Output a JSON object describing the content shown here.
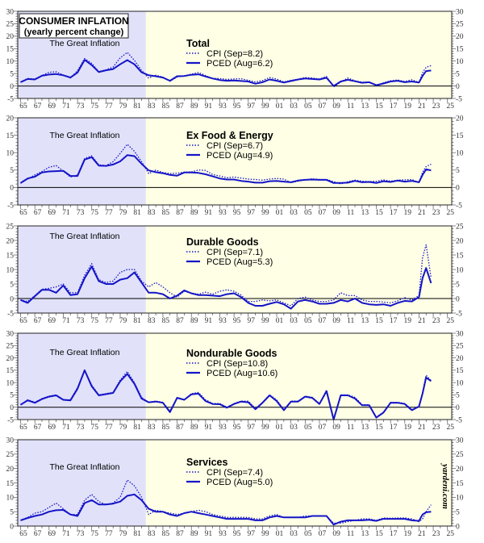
{
  "header": {
    "title": "CONSUMER INFLATION",
    "subtitle": "(yearly percent change)"
  },
  "watermark": "yardeni.com",
  "colors": {
    "line": "#1414C8",
    "great_inflation_shade": "#E1E1FA",
    "background": "#FFFFE6",
    "zero_line": "#000000"
  },
  "chart_data": {
    "type": "line",
    "shared_x_note_label": "The Great Inflation",
    "great_inflation_period": [
      1964.6,
      1982.6
    ],
    "xlim": [
      1964.6,
      2025.6
    ],
    "x_tick_labels": [
      "65",
      "67",
      "69",
      "71",
      "73",
      "75",
      "77",
      "79",
      "81",
      "83",
      "85",
      "87",
      "89",
      "91",
      "93",
      "95",
      "97",
      "99",
      "01",
      "03",
      "05",
      "07",
      "09",
      "11",
      "13",
      "15",
      "17",
      "19",
      "21",
      "23",
      "25"
    ],
    "x": [
      1965,
      1966,
      1967,
      1968,
      1969,
      1970,
      1971,
      1972,
      1973,
      1974,
      1975,
      1976,
      1977,
      1978,
      1979,
      1980,
      1981,
      1982,
      1983,
      1984,
      1985,
      1986,
      1987,
      1988,
      1989,
      1990,
      1991,
      1992,
      1993,
      1994,
      1995,
      1996,
      1997,
      1998,
      1999,
      2000,
      2001,
      2002,
      2003,
      2004,
      2005,
      2006,
      2007,
      2008,
      2009,
      2010,
      2011,
      2012,
      2013,
      2014,
      2015,
      2016,
      2017,
      2018,
      2019,
      2020,
      2021,
      2021.5,
      2022,
      2022.7
    ],
    "panels": [
      {
        "title": "Total",
        "ylim": [
          -5,
          30
        ],
        "y_ticks": [
          -5,
          0,
          5,
          10,
          15,
          20,
          25,
          30
        ],
        "grid": false,
        "series": [
          {
            "name": "CPI (Sep=8.2)",
            "style": "dotted",
            "values": [
              1.6,
              3.0,
              2.8,
              4.2,
              5.5,
              5.7,
              4.4,
              3.2,
              6.2,
              11.0,
              9.1,
              5.8,
              6.5,
              7.6,
              11.3,
              13.5,
              10.3,
              6.2,
              3.2,
              4.3,
              3.6,
              1.9,
              3.6,
              4.1,
              4.8,
              5.4,
              4.2,
              3.0,
              3.0,
              2.6,
              2.8,
              2.9,
              2.3,
              1.6,
              2.2,
              3.4,
              2.8,
              1.6,
              2.3,
              2.7,
              3.4,
              3.2,
              2.8,
              3.8,
              -0.4,
              1.6,
              3.2,
              2.1,
              1.5,
              1.6,
              0.1,
              1.3,
              2.1,
              2.4,
              1.8,
              2.5,
              1.4,
              5.3,
              7.5,
              8.2
            ]
          },
          {
            "name": "PCED (Aug=6.2)",
            "style": "solid",
            "values": [
              1.5,
              2.8,
              2.6,
              4.1,
              4.6,
              4.8,
              4.3,
              3.4,
              5.4,
              10.5,
              8.4,
              5.6,
              6.3,
              6.8,
              8.7,
              10.4,
              8.7,
              5.5,
              4.3,
              3.9,
              3.4,
              2.1,
              3.9,
              4.0,
              4.5,
              4.7,
              3.8,
              3.0,
              2.4,
              2.1,
              2.2,
              2.0,
              1.8,
              0.9,
              1.5,
              2.6,
              2.1,
              1.4,
              2.0,
              2.6,
              3.0,
              2.8,
              2.6,
              3.3,
              0.0,
              1.8,
              2.5,
              1.9,
              1.3,
              1.5,
              0.3,
              1.0,
              1.8,
              2.1,
              1.5,
              1.8,
              1.4,
              4.0,
              6.0,
              6.2
            ]
          }
        ]
      },
      {
        "title": "Ex Food & Energy",
        "ylim": [
          -5,
          20
        ],
        "y_ticks": [
          -5,
          0,
          5,
          10,
          15,
          20
        ],
        "grid": false,
        "series": [
          {
            "name": "CPI (Sep=6.7)",
            "style": "dotted",
            "values": [
              1.2,
              2.4,
              3.6,
              4.6,
              5.8,
              6.3,
              4.7,
              3.0,
              3.6,
              8.3,
              9.1,
              6.5,
              6.3,
              7.4,
              9.8,
              12.4,
              10.4,
              7.4,
              4.0,
              5.0,
              4.3,
              4.0,
              4.1,
              4.4,
              4.5,
              5.0,
              4.9,
              3.7,
              3.3,
              2.8,
              3.0,
              2.7,
              2.4,
              2.3,
              2.1,
              2.4,
              2.6,
              2.4,
              1.4,
              1.8,
              2.2,
              2.5,
              2.3,
              2.3,
              1.7,
              1.0,
              1.7,
              2.1,
              1.8,
              1.7,
              1.8,
              2.2,
              1.8,
              2.1,
              2.2,
              2.3,
              1.4,
              4.4,
              6.0,
              6.7
            ]
          },
          {
            "name": "PCED (Aug=4.9)",
            "style": "solid",
            "values": [
              1.3,
              2.6,
              3.1,
              4.3,
              4.6,
              4.7,
              4.8,
              3.3,
              3.3,
              8.0,
              8.7,
              6.3,
              6.2,
              6.6,
              7.5,
              9.3,
              9.0,
              6.8,
              4.9,
              4.4,
              4.1,
              3.6,
              3.4,
              4.3,
              4.3,
              4.2,
              3.8,
              3.2,
              2.6,
              2.3,
              2.3,
              1.9,
              1.7,
              1.4,
              1.4,
              1.8,
              1.9,
              1.7,
              1.5,
              2.0,
              2.2,
              2.3,
              2.2,
              2.2,
              1.3,
              1.3,
              1.4,
              1.9,
              1.5,
              1.6,
              1.3,
              1.8,
              1.6,
              2.0,
              1.7,
              1.9,
              1.5,
              3.6,
              5.2,
              4.9
            ]
          }
        ]
      },
      {
        "title": "Durable Goods",
        "ylim": [
          -5,
          25
        ],
        "y_ticks": [
          -5,
          0,
          5,
          10,
          15,
          20,
          25
        ],
        "grid": false,
        "series": [
          {
            "name": "CPI (Sep=7.1)",
            "style": "dotted",
            "values": [
              -0.5,
              -1.0,
              1.0,
              3.2,
              3.5,
              4.0,
              5.0,
              2.0,
              2.0,
              8.0,
              12.0,
              6.5,
              5.5,
              6.0,
              9.0,
              10.0,
              10.0,
              6.0,
              4.0,
              5.5,
              4.0,
              2.0,
              0.5,
              2.5,
              1.8,
              1.5,
              2.2,
              1.5,
              2.5,
              3.0,
              2.5,
              1.2,
              -1.0,
              -1.0,
              -0.5,
              -0.8,
              -0.5,
              -1.5,
              -2.5,
              0.0,
              0.5,
              -0.5,
              -1.0,
              -1.0,
              -0.5,
              2.0,
              1.0,
              1.0,
              -0.5,
              -1.0,
              -1.0,
              -1.2,
              -1.5,
              -0.8,
              0.3,
              -0.5,
              1.0,
              14.0,
              18.5,
              7.1
            ]
          },
          {
            "name": "PCED (Aug=5.3)",
            "style": "solid",
            "values": [
              -0.5,
              -1.5,
              0.8,
              3.0,
              3.0,
              2.0,
              4.5,
              1.2,
              1.5,
              7.0,
              11.0,
              6.0,
              5.0,
              5.0,
              6.5,
              7.0,
              9.0,
              5.5,
              2.0,
              2.0,
              1.5,
              0.0,
              1.0,
              2.8,
              1.8,
              1.2,
              1.2,
              1.0,
              0.8,
              1.5,
              1.8,
              0.5,
              -1.5,
              -2.5,
              -2.5,
              -1.8,
              -1.2,
              -2.0,
              -3.5,
              -1.0,
              -0.5,
              -1.0,
              -1.8,
              -1.8,
              -1.5,
              -0.5,
              -1.0,
              0.0,
              -1.5,
              -2.0,
              -2.2,
              -2.0,
              -2.5,
              -1.5,
              -0.8,
              -1.0,
              0.5,
              7.0,
              10.5,
              5.3
            ]
          }
        ]
      },
      {
        "title": "Nondurable Goods",
        "ylim": [
          -5,
          30
        ],
        "y_ticks": [
          -5,
          0,
          5,
          10,
          15,
          20,
          25,
          30
        ],
        "grid": false,
        "series": [
          {
            "name": "CPI (Sep=10.8)",
            "style": "dotted",
            "values": [
              1.0,
              3.0,
              2.0,
              3.5,
              4.5,
              5.0,
              3.0,
              3.0,
              8.0,
              15.0,
              9.0,
              5.0,
              5.5,
              6.0,
              11.0,
              14.5,
              10.0,
              4.0,
              2.0,
              2.5,
              2.0,
              -1.5,
              4.0,
              3.0,
              5.5,
              6.0,
              3.0,
              1.5,
              1.5,
              0.0,
              1.5,
              2.5,
              2.5,
              -0.5,
              2.0,
              5.0,
              3.0,
              -1.0,
              2.5,
              2.5,
              4.5,
              4.0,
              1.5,
              7.0,
              -4.5,
              5.0,
              5.0,
              4.0,
              1.0,
              1.0,
              -4.0,
              -2.0,
              2.0,
              2.0,
              1.5,
              -1.0,
              0.5,
              6.0,
              13.0,
              10.8
            ]
          },
          {
            "name": "PCED (Aug=10.6)",
            "style": "solid",
            "values": [
              1.0,
              2.8,
              1.8,
              3.3,
              4.3,
              4.8,
              3.0,
              2.8,
              7.5,
              15.0,
              8.5,
              4.8,
              5.3,
              5.8,
              10.5,
              13.5,
              9.5,
              3.5,
              2.0,
              2.3,
              1.8,
              -2.0,
              3.8,
              3.0,
              5.2,
              5.5,
              2.5,
              1.3,
              1.2,
              -0.2,
              1.3,
              2.3,
              2.0,
              -0.8,
              1.8,
              4.8,
              2.5,
              -1.2,
              2.3,
              2.3,
              4.3,
              3.8,
              1.3,
              6.5,
              -5.0,
              4.8,
              4.8,
              3.5,
              0.8,
              0.8,
              -4.2,
              -2.2,
              1.8,
              1.8,
              1.3,
              -1.2,
              0.3,
              5.5,
              12.0,
              10.6
            ]
          }
        ]
      },
      {
        "title": "Services",
        "ylim": [
          0,
          30
        ],
        "y_ticks": [
          0,
          5,
          10,
          15,
          20,
          25,
          30
        ],
        "grid": false,
        "series": [
          {
            "name": "CPI (Sep=7.4)",
            "style": "dotted",
            "values": [
              2.0,
              3.0,
              4.5,
              5.0,
              6.5,
              8.0,
              6.0,
              4.0,
              4.0,
              9.0,
              11.0,
              8.5,
              7.5,
              8.0,
              10.0,
              16.0,
              14.0,
              10.0,
              4.0,
              5.5,
              5.0,
              4.5,
              4.0,
              4.5,
              5.0,
              5.5,
              5.0,
              4.0,
              3.5,
              3.0,
              3.0,
              3.0,
              3.0,
              2.5,
              2.5,
              3.5,
              4.0,
              3.0,
              3.0,
              3.0,
              3.5,
              3.5,
              3.5,
              3.5,
              1.0,
              1.0,
              1.5,
              2.0,
              2.5,
              2.5,
              2.0,
              2.8,
              2.7,
              2.8,
              2.8,
              2.5,
              1.5,
              2.5,
              5.0,
              7.4
            ]
          },
          {
            "name": "PCED (Aug=5.0)",
            "style": "solid",
            "values": [
              2.0,
              2.8,
              3.5,
              4.0,
              5.0,
              5.5,
              5.6,
              4.0,
              3.5,
              8.0,
              9.0,
              7.5,
              7.5,
              7.8,
              8.5,
              10.5,
              11.0,
              9.0,
              6.0,
              5.0,
              5.0,
              4.0,
              3.5,
              4.5,
              5.0,
              4.5,
              4.0,
              3.5,
              3.0,
              2.5,
              2.5,
              2.5,
              2.5,
              2.0,
              2.0,
              3.0,
              3.5,
              3.0,
              3.0,
              3.0,
              3.0,
              3.5,
              3.5,
              3.5,
              0.5,
              1.5,
              2.0,
              2.0,
              2.0,
              2.2,
              1.8,
              2.5,
              2.5,
              2.5,
              2.5,
              2.0,
              1.8,
              4.0,
              4.8,
              5.0
            ]
          }
        ]
      }
    ]
  }
}
